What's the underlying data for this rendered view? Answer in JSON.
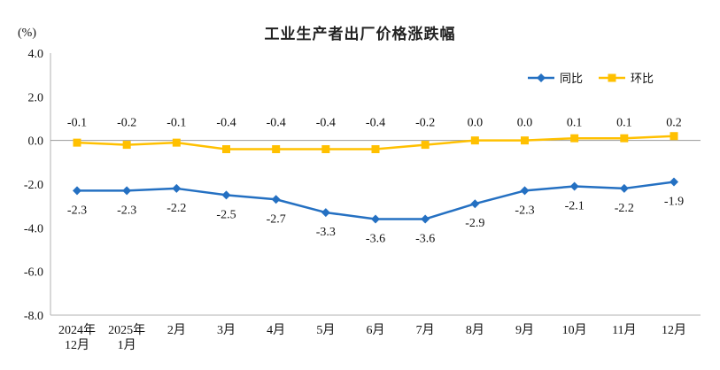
{
  "chart_data": {
    "type": "line",
    "title": "工业生产者出厂价格涨跌幅",
    "ylabel": "(%)",
    "xlabel": "",
    "ylim": [
      -8,
      4
    ],
    "yticks": [
      4.0,
      2.0,
      0.0,
      -2.0,
      -4.0,
      -6.0,
      -8.0
    ],
    "grid": false,
    "legend_position": "top-right",
    "categories": [
      "2024年\n12月",
      "2025年\n1月",
      "2月",
      "3月",
      "4月",
      "5月",
      "6月",
      "7月",
      "8月",
      "9月",
      "10月",
      "11月",
      "12月"
    ],
    "series": [
      {
        "name": "同比",
        "id": "yoy",
        "color": "#2470C2",
        "marker": "diamond",
        "label_side": "below",
        "values": [
          -2.3,
          -2.3,
          -2.2,
          -2.5,
          -2.7,
          -3.3,
          -3.6,
          -3.6,
          -2.9,
          -2.3,
          -2.1,
          -2.2,
          -1.9
        ]
      },
      {
        "name": "环比",
        "id": "mom",
        "color": "#FFC000",
        "marker": "square",
        "label_side": "above",
        "values": [
          -0.1,
          -0.2,
          -0.1,
          -0.4,
          -0.4,
          -0.4,
          -0.4,
          -0.2,
          0.0,
          0.0,
          0.1,
          0.1,
          0.2
        ]
      }
    ],
    "colors": {
      "axis": "#b0b0b0",
      "zero_line": "#999999",
      "label_text": "#1a1a1a"
    }
  }
}
